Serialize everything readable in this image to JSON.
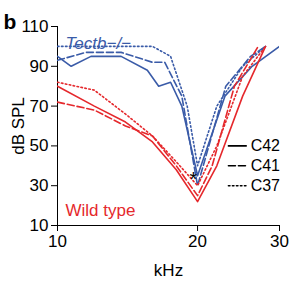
{
  "chart_data": {
    "type": "line",
    "panel_label": "b",
    "xlabel": "kHz",
    "ylabel": "dB SPL",
    "log": "x",
    "xlim": [
      10,
      30
    ],
    "xticks": [
      10,
      20,
      30
    ],
    "ylim": [
      10,
      110
    ],
    "yticks": [
      10,
      30,
      50,
      70,
      90,
      110
    ],
    "legend": "right",
    "groups": [
      {
        "name": "Tectb−/−",
        "color": "#3a5ba8",
        "series": [
          {
            "name": "C42",
            "line_style": "solid",
            "x": [
              10,
              10.7,
              11.8,
              13.7,
              15.6,
              16.5,
              17.5,
              18.5,
              20,
              22.9,
              26.2,
              30
            ],
            "values": [
              95,
              90,
              95,
              95,
              88,
              80,
              82,
              70,
              35,
              75,
              90,
              100
            ]
          },
          {
            "name": "C41",
            "line_style": "dashed",
            "x": [
              10,
              11.5,
              13.7,
              16,
              17,
              18.5,
              20,
              23,
              26,
              28
            ],
            "values": [
              93,
              97,
              97,
              92,
              92,
              75,
              30,
              80,
              95,
              100
            ]
          },
          {
            "name": "C37",
            "line_style": "dotted",
            "x": [
              10,
              12,
              14,
              16,
              17.5,
              19,
              20,
              22,
              25,
              28
            ],
            "values": [
              100,
              100,
              100,
              100,
              95,
              70,
              40,
              70,
              90,
              100
            ]
          }
        ]
      },
      {
        "name": "Wild type",
        "color": "#e5282c",
        "series": [
          {
            "name": "C42",
            "line_style": "solid",
            "x": [
              10,
              12,
              14,
              16,
              18,
              20,
              22,
              25,
              28
            ],
            "values": [
              80,
              70,
              62,
              52,
              38,
              22,
              40,
              75,
              100
            ]
          },
          {
            "name": "C41",
            "line_style": "dashed",
            "x": [
              10,
              12,
              14,
              16,
              18,
              20,
              21.5,
              24,
              27
            ],
            "values": [
              72,
              68,
              60,
              55,
              40,
              25,
              40,
              80,
              100
            ]
          },
          {
            "name": "C37",
            "line_style": "dotted",
            "x": [
              10,
              12,
              14,
              16,
              18,
              20,
              22,
              25,
              28
            ],
            "values": [
              82,
              78,
              66,
              55,
              42,
              30,
              50,
              85,
              100
            ]
          }
        ]
      }
    ],
    "annotations": [
      {
        "text": "*",
        "x": 19.6,
        "y": 33
      }
    ]
  }
}
